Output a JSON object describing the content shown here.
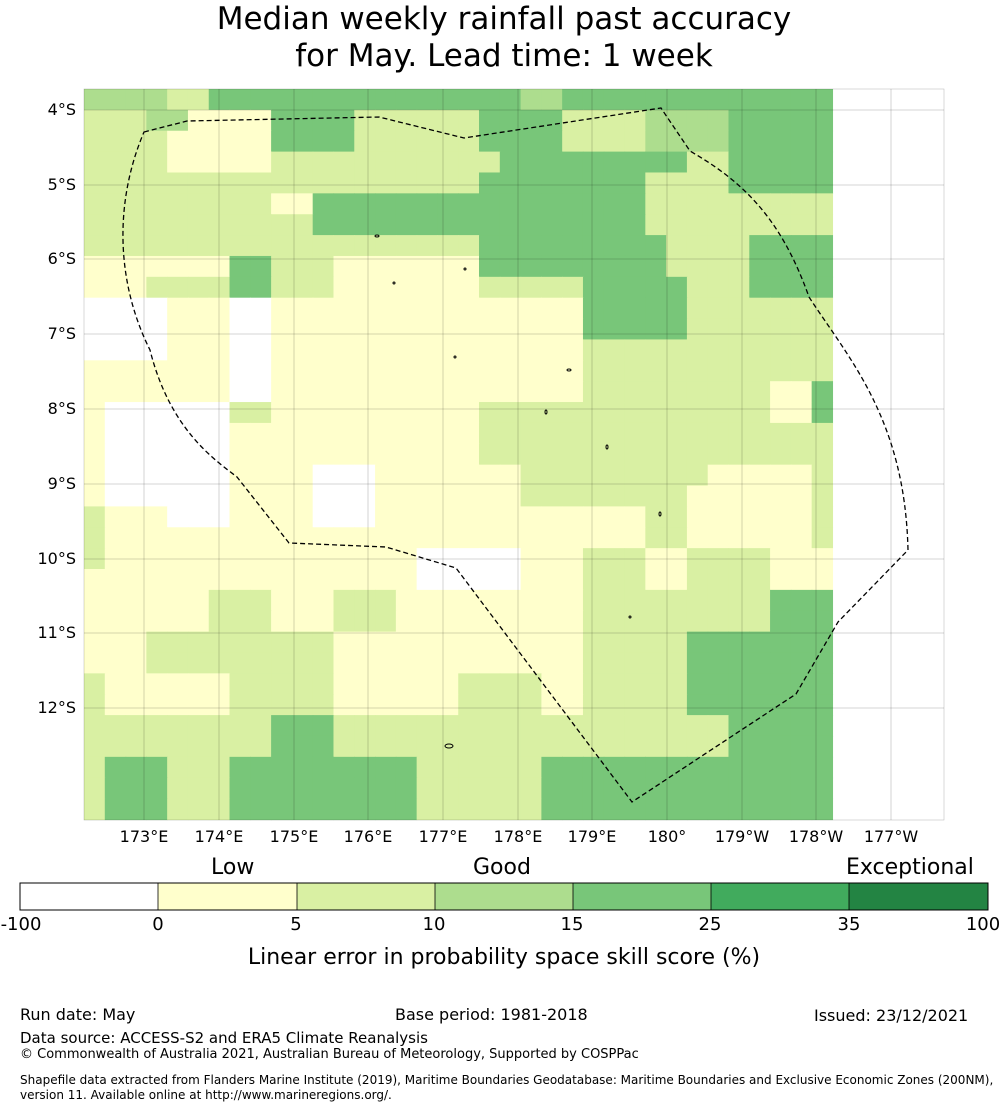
{
  "title_line1": "Median weekly rainfall past accuracy",
  "title_line2": "for May. Lead time: 1 week",
  "map": {
    "lat_labels": [
      "4°S",
      "5°S",
      "6°S",
      "7°S",
      "8°S",
      "9°S",
      "10°S",
      "11°S",
      "12°S"
    ],
    "lon_labels": [
      "173°E",
      "174°E",
      "175°E",
      "176°E",
      "177°E",
      "178°E",
      "179°E",
      "180°",
      "179°W",
      "178°W",
      "177°W"
    ],
    "grid_levels": [
      [
        3,
        3,
        3,
        3,
        2,
        2,
        4,
        4,
        4,
        4,
        4,
        4,
        4,
        4,
        4,
        4,
        4,
        4,
        4,
        4,
        4,
        3,
        3,
        4,
        4,
        4,
        4,
        4,
        4,
        4,
        4,
        4,
        4,
        4,
        4,
        4
      ],
      [
        2,
        2,
        2,
        3,
        3,
        1,
        1,
        1,
        1,
        4,
        4,
        4,
        4,
        2,
        2,
        2,
        2,
        2,
        2,
        4,
        4,
        4,
        4,
        2,
        2,
        2,
        2,
        3,
        3,
        3,
        3,
        4,
        4,
        4,
        4,
        4
      ],
      [
        2,
        2,
        2,
        2,
        1,
        1,
        1,
        1,
        1,
        4,
        4,
        4,
        4,
        2,
        2,
        2,
        2,
        2,
        2,
        4,
        4,
        4,
        4,
        2,
        2,
        2,
        2,
        3,
        3,
        3,
        3,
        4,
        4,
        4,
        4,
        4
      ],
      [
        2,
        2,
        2,
        2,
        1,
        1,
        1,
        1,
        1,
        2,
        2,
        2,
        2,
        2,
        2,
        2,
        2,
        2,
        2,
        2,
        4,
        4,
        4,
        4,
        4,
        4,
        4,
        4,
        4,
        2,
        2,
        4,
        4,
        4,
        4,
        4
      ],
      [
        2,
        2,
        2,
        2,
        2,
        2,
        2,
        2,
        2,
        2,
        2,
        2,
        2,
        2,
        2,
        2,
        2,
        2,
        2,
        4,
        4,
        4,
        4,
        4,
        4,
        4,
        4,
        2,
        2,
        2,
        2,
        4,
        4,
        4,
        4,
        4
      ],
      [
        2,
        2,
        2,
        2,
        2,
        2,
        2,
        2,
        2,
        1,
        1,
        4,
        4,
        4,
        4,
        4,
        4,
        4,
        4,
        4,
        4,
        4,
        4,
        4,
        4,
        4,
        4,
        2,
        2,
        2,
        2,
        2,
        2,
        2,
        2,
        2
      ],
      [
        2,
        2,
        2,
        2,
        2,
        2,
        2,
        2,
        2,
        2,
        2,
        4,
        4,
        4,
        4,
        4,
        4,
        4,
        4,
        4,
        4,
        4,
        4,
        4,
        4,
        4,
        4,
        2,
        2,
        2,
        2,
        2,
        2,
        2,
        2,
        2
      ],
      [
        2,
        2,
        2,
        2,
        2,
        2,
        2,
        2,
        2,
        2,
        2,
        2,
        2,
        2,
        2,
        2,
        2,
        2,
        2,
        4,
        4,
        4,
        4,
        4,
        4,
        4,
        4,
        4,
        2,
        2,
        2,
        2,
        4,
        4,
        4,
        4
      ],
      [
        1,
        1,
        1,
        1,
        1,
        1,
        1,
        4,
        4,
        2,
        2,
        2,
        1,
        1,
        1,
        1,
        1,
        1,
        1,
        4,
        4,
        4,
        4,
        4,
        4,
        4,
        4,
        4,
        2,
        2,
        2,
        2,
        4,
        4,
        4,
        4
      ],
      [
        1,
        1,
        1,
        2,
        2,
        2,
        2,
        4,
        4,
        2,
        2,
        2,
        1,
        1,
        1,
        1,
        1,
        1,
        1,
        2,
        2,
        2,
        2,
        2,
        4,
        4,
        4,
        4,
        4,
        2,
        2,
        2,
        4,
        4,
        4,
        4
      ],
      [
        0,
        0,
        0,
        0,
        1,
        1,
        1,
        0,
        0,
        1,
        1,
        1,
        1,
        1,
        1,
        1,
        1,
        1,
        1,
        1,
        1,
        1,
        1,
        1,
        4,
        4,
        4,
        4,
        4,
        2,
        2,
        2,
        2,
        2,
        2,
        2
      ],
      [
        0,
        0,
        0,
        0,
        1,
        1,
        1,
        0,
        0,
        1,
        1,
        1,
        1,
        1,
        1,
        1,
        1,
        1,
        1,
        1,
        1,
        1,
        1,
        1,
        4,
        4,
        4,
        4,
        4,
        2,
        2,
        2,
        2,
        2,
        2,
        2
      ],
      [
        0,
        0,
        0,
        0,
        1,
        1,
        1,
        0,
        0,
        1,
        1,
        1,
        1,
        1,
        1,
        1,
        1,
        1,
        1,
        1,
        1,
        1,
        1,
        1,
        2,
        2,
        2,
        2,
        2,
        2,
        2,
        2,
        2,
        2,
        2,
        2
      ],
      [
        1,
        1,
        1,
        1,
        1,
        1,
        1,
        0,
        0,
        1,
        1,
        1,
        1,
        1,
        1,
        1,
        1,
        1,
        1,
        1,
        1,
        1,
        1,
        1,
        2,
        2,
        2,
        2,
        2,
        2,
        2,
        2,
        2,
        2,
        2,
        2
      ],
      [
        1,
        1,
        1,
        1,
        1,
        1,
        1,
        0,
        0,
        1,
        1,
        1,
        1,
        1,
        1,
        1,
        1,
        1,
        1,
        1,
        1,
        1,
        1,
        1,
        2,
        2,
        2,
        2,
        2,
        2,
        2,
        2,
        2,
        1,
        1,
        4
      ],
      [
        1,
        0,
        0,
        0,
        0,
        0,
        0,
        2,
        2,
        1,
        1,
        1,
        1,
        1,
        1,
        1,
        1,
        1,
        1,
        2,
        2,
        2,
        2,
        2,
        2,
        2,
        2,
        2,
        2,
        2,
        2,
        2,
        2,
        1,
        1,
        4
      ],
      [
        1,
        0,
        0,
        0,
        0,
        0,
        0,
        1,
        1,
        1,
        1,
        1,
        1,
        1,
        1,
        1,
        1,
        1,
        1,
        2,
        2,
        2,
        2,
        2,
        2,
        2,
        2,
        2,
        2,
        2,
        2,
        2,
        2,
        2,
        2,
        2
      ],
      [
        1,
        0,
        0,
        0,
        0,
        0,
        0,
        1,
        1,
        1,
        1,
        1,
        1,
        1,
        1,
        1,
        1,
        1,
        1,
        2,
        2,
        2,
        2,
        2,
        2,
        2,
        2,
        2,
        2,
        2,
        2,
        2,
        2,
        2,
        2,
        2
      ],
      [
        1,
        0,
        0,
        0,
        0,
        0,
        0,
        1,
        1,
        1,
        1,
        0,
        0,
        0,
        1,
        1,
        1,
        1,
        1,
        1,
        1,
        2,
        2,
        2,
        2,
        2,
        2,
        2,
        2,
        2,
        1,
        1,
        1,
        1,
        1,
        2
      ],
      [
        1,
        0,
        0,
        0,
        0,
        0,
        0,
        1,
        1,
        1,
        1,
        0,
        0,
        0,
        1,
        1,
        1,
        1,
        1,
        1,
        1,
        2,
        2,
        2,
        2,
        2,
        2,
        2,
        2,
        1,
        1,
        1,
        1,
        1,
        1,
        2
      ],
      [
        2,
        1,
        1,
        1,
        0,
        0,
        0,
        1,
        1,
        1,
        1,
        0,
        0,
        0,
        1,
        1,
        1,
        1,
        1,
        1,
        1,
        1,
        1,
        1,
        1,
        1,
        1,
        2,
        2,
        1,
        1,
        1,
        1,
        1,
        1,
        2
      ],
      [
        2,
        1,
        1,
        1,
        1,
        1,
        1,
        1,
        1,
        1,
        1,
        1,
        1,
        1,
        1,
        1,
        1,
        1,
        1,
        1,
        1,
        1,
        1,
        1,
        1,
        1,
        1,
        2,
        2,
        1,
        1,
        1,
        1,
        1,
        1,
        2
      ],
      [
        2,
        1,
        1,
        1,
        1,
        1,
        1,
        1,
        1,
        1,
        1,
        1,
        1,
        1,
        1,
        1,
        0,
        0,
        0,
        0,
        0,
        1,
        1,
        1,
        2,
        2,
        2,
        1,
        1,
        2,
        2,
        2,
        2,
        1,
        1,
        1
      ],
      [
        1,
        1,
        1,
        1,
        1,
        1,
        1,
        1,
        1,
        1,
        1,
        1,
        1,
        1,
        1,
        1,
        0,
        0,
        0,
        0,
        0,
        1,
        1,
        1,
        2,
        2,
        2,
        1,
        1,
        2,
        2,
        2,
        2,
        1,
        1,
        1
      ],
      [
        1,
        1,
        1,
        1,
        1,
        1,
        2,
        2,
        2,
        1,
        1,
        1,
        2,
        2,
        2,
        1,
        1,
        1,
        1,
        1,
        1,
        1,
        1,
        1,
        2,
        2,
        2,
        2,
        2,
        2,
        2,
        2,
        2,
        4,
        4,
        4
      ],
      [
        1,
        1,
        1,
        1,
        1,
        1,
        2,
        2,
        2,
        1,
        1,
        1,
        2,
        2,
        2,
        1,
        1,
        1,
        1,
        1,
        1,
        1,
        1,
        1,
        2,
        2,
        2,
        2,
        2,
        2,
        2,
        2,
        2,
        4,
        4,
        4
      ],
      [
        1,
        1,
        1,
        2,
        2,
        2,
        2,
        2,
        2,
        2,
        2,
        2,
        1,
        1,
        1,
        1,
        1,
        1,
        1,
        1,
        1,
        1,
        1,
        1,
        2,
        2,
        2,
        2,
        2,
        4,
        4,
        4,
        4,
        4,
        4,
        4
      ],
      [
        1,
        1,
        1,
        2,
        2,
        2,
        2,
        2,
        2,
        2,
        2,
        2,
        1,
        1,
        1,
        1,
        1,
        1,
        1,
        1,
        1,
        1,
        1,
        1,
        2,
        2,
        2,
        2,
        2,
        4,
        4,
        4,
        4,
        4,
        4,
        4
      ],
      [
        2,
        1,
        1,
        1,
        1,
        1,
        1,
        2,
        2,
        2,
        2,
        2,
        1,
        1,
        1,
        1,
        1,
        1,
        2,
        2,
        2,
        2,
        1,
        1,
        2,
        2,
        2,
        2,
        2,
        4,
        4,
        4,
        4,
        4,
        4,
        4
      ],
      [
        2,
        1,
        1,
        1,
        1,
        1,
        1,
        2,
        2,
        2,
        2,
        2,
        1,
        1,
        1,
        1,
        1,
        1,
        2,
        2,
        2,
        2,
        1,
        1,
        2,
        2,
        2,
        2,
        2,
        4,
        4,
        4,
        4,
        4,
        4,
        4
      ],
      [
        2,
        2,
        2,
        2,
        2,
        2,
        2,
        2,
        2,
        4,
        4,
        4,
        2,
        2,
        2,
        2,
        2,
        2,
        2,
        2,
        2,
        2,
        2,
        2,
        2,
        2,
        2,
        2,
        2,
        2,
        2,
        4,
        4,
        4,
        4,
        4
      ],
      [
        2,
        2,
        2,
        2,
        2,
        2,
        2,
        2,
        2,
        4,
        4,
        4,
        2,
        2,
        2,
        2,
        2,
        2,
        2,
        2,
        2,
        2,
        2,
        2,
        2,
        2,
        2,
        2,
        2,
        2,
        2,
        4,
        4,
        4,
        4,
        4
      ],
      [
        2,
        4,
        4,
        4,
        2,
        2,
        2,
        4,
        4,
        4,
        4,
        4,
        4,
        4,
        4,
        4,
        2,
        2,
        2,
        2,
        2,
        2,
        4,
        4,
        4,
        4,
        4,
        4,
        4,
        4,
        4,
        4,
        4,
        4,
        4,
        4
      ],
      [
        2,
        4,
        4,
        4,
        2,
        2,
        2,
        4,
        4,
        4,
        4,
        4,
        4,
        4,
        4,
        4,
        2,
        2,
        2,
        2,
        2,
        2,
        4,
        4,
        4,
        4,
        4,
        4,
        4,
        4,
        4,
        4,
        4,
        4,
        4,
        4
      ],
      [
        2,
        4,
        4,
        4,
        2,
        2,
        2,
        4,
        4,
        4,
        4,
        4,
        4,
        4,
        4,
        4,
        2,
        2,
        2,
        2,
        2,
        2,
        4,
        4,
        4,
        4,
        4,
        4,
        4,
        4,
        4,
        4,
        4,
        4,
        4,
        4
      ]
    ]
  },
  "legend": {
    "categories": [
      "Low",
      "Good",
      "Exceptional"
    ],
    "ticks": [
      "-100",
      "0",
      "5",
      "10",
      "15",
      "25",
      "35",
      "100"
    ],
    "colors": [
      "#ffffff",
      "#ffffcc",
      "#d9f0a3",
      "#addd8e",
      "#78c679",
      "#41ab5d",
      "#238443"
    ],
    "title": "Linear error in probability space skill score (%)"
  },
  "footer": {
    "run_date": "Run date: May",
    "base_period": "Base period: 1981-2018",
    "issued": "Issued: 23/12/2021",
    "data_source": "Data source: ACCESS-S2 and ERA5 Climate Reanalysis",
    "copyright": "© Commonwealth of Australia 2021, Australian Bureau of Meteorology, Supported by COSPPac",
    "shapefile": "Shapefile data extracted from Flanders Marine Institute (2019), Maritime Boundaries Geodatabase: Maritime Boundaries and Exclusive Economic Zones (200NM), version 11. Available online at http://www.marineregions.org/."
  }
}
